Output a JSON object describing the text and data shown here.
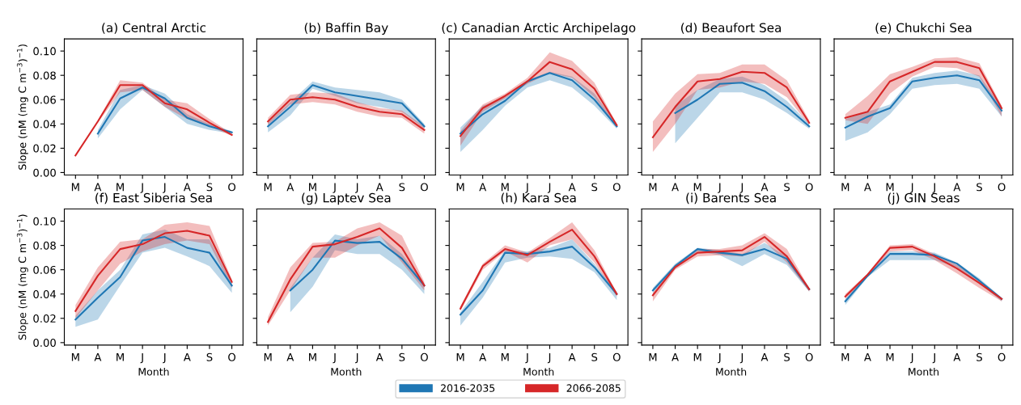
{
  "chart_data": [
    {
      "type": "line",
      "title": "(a) Central Arctic",
      "categories": [
        "M",
        "A",
        "M",
        "J",
        "J",
        "A",
        "S",
        "O"
      ],
      "legend": "bottom",
      "ylabel": "Slope (nM (mg C m$^{−3}$)$^{−1}$)",
      "ylim": [
        -0.002,
        0.11
      ],
      "yticks": [
        {
          "value": 0,
          "label": "0.00"
        },
        {
          "value": 0.02,
          "label": "0.02"
        },
        {
          "value": 0.04,
          "label": "0.04"
        },
        {
          "value": 0.06,
          "label": "0.06"
        },
        {
          "value": 0.08,
          "label": "0.08"
        },
        {
          "value": 0.1,
          "label": "0.10"
        }
      ],
      "series": [
        {
          "name": "2016-2035",
          "color": "#1f77b4",
          "values": [
            null,
            0.032,
            0.061,
            0.07,
            0.061,
            0.045,
            0.038,
            0.033
          ],
          "lower": [
            null,
            0.028,
            0.052,
            0.068,
            0.054,
            0.04,
            0.035,
            0.032
          ],
          "upper": [
            null,
            0.035,
            0.068,
            0.072,
            0.065,
            0.048,
            0.04,
            0.034
          ]
        },
        {
          "name": "2066-2085",
          "color": "#d62728",
          "values": [
            0.014,
            0.042,
            0.072,
            0.072,
            0.057,
            0.052,
            0.041,
            0.031
          ],
          "lower": [
            null,
            0.041,
            0.066,
            0.068,
            0.054,
            0.044,
            0.038,
            0.03
          ],
          "upper": [
            null,
            0.043,
            0.076,
            0.074,
            0.06,
            0.057,
            0.044,
            0.032
          ]
        }
      ]
    },
    {
      "type": "line",
      "title": "(b) Baffin Bay",
      "categories": [
        "M",
        "A",
        "M",
        "J",
        "J",
        "A",
        "S",
        "O"
      ],
      "tick_labels": "x",
      "ylim": [
        -0.002,
        0.11
      ],
      "yticks": [
        0,
        0.02,
        0.04,
        0.06,
        0.08,
        0.1
      ],
      "series": [
        {
          "color": "#1f77b4",
          "values": [
            0.038,
            0.054,
            0.072,
            0.066,
            0.063,
            0.06,
            0.057,
            0.038
          ],
          "lower": [
            0.033,
            0.047,
            0.069,
            0.063,
            0.057,
            0.054,
            0.05,
            0.036
          ],
          "upper": [
            0.041,
            0.058,
            0.075,
            0.07,
            0.068,
            0.066,
            0.06,
            0.04
          ]
        },
        {
          "color": "#d62728",
          "values": [
            0.042,
            0.06,
            0.062,
            0.06,
            0.054,
            0.05,
            0.048,
            0.035
          ],
          "lower": [
            0.039,
            0.056,
            0.058,
            0.056,
            0.05,
            0.046,
            0.045,
            0.032
          ],
          "upper": [
            0.045,
            0.064,
            0.066,
            0.065,
            0.058,
            0.053,
            0.051,
            0.038
          ]
        }
      ]
    },
    {
      "type": "line",
      "title": "(c) Canadian Arctic Archipelago",
      "categories": [
        "M",
        "A",
        "M",
        "J",
        "J",
        "A",
        "S",
        "O"
      ],
      "tick_labels": "x",
      "ylim": [
        -0.002,
        0.11
      ],
      "yticks": [
        0,
        0.02,
        0.04,
        0.06,
        0.08,
        0.1
      ],
      "series": [
        {
          "color": "#1f77b4",
          "values": [
            0.032,
            0.048,
            0.059,
            0.075,
            0.082,
            0.076,
            0.06,
            0.038
          ],
          "lower": [
            0.017,
            0.035,
            0.055,
            0.07,
            0.076,
            0.07,
            0.055,
            0.036
          ],
          "upper": [
            0.037,
            0.055,
            0.062,
            0.076,
            0.083,
            0.079,
            0.065,
            0.04
          ]
        },
        {
          "color": "#d62728",
          "values": [
            0.03,
            0.053,
            0.063,
            0.075,
            0.091,
            0.085,
            0.069,
            0.039
          ],
          "lower": [
            0.022,
            0.05,
            0.061,
            0.073,
            0.082,
            0.078,
            0.062,
            0.037
          ],
          "upper": [
            0.034,
            0.056,
            0.065,
            0.078,
            0.099,
            0.092,
            0.074,
            0.04
          ]
        }
      ]
    },
    {
      "type": "line",
      "title": "(d) Beaufort Sea",
      "categories": [
        "M",
        "A",
        "M",
        "J",
        "J",
        "A",
        "S",
        "O"
      ],
      "tick_labels": "x",
      "ylim": [
        -0.002,
        0.11
      ],
      "yticks": [
        0,
        0.02,
        0.04,
        0.06,
        0.08,
        0.1
      ],
      "series": [
        {
          "color": "#1f77b4",
          "values": [
            null,
            0.049,
            0.06,
            0.073,
            0.074,
            0.067,
            0.054,
            0.038
          ],
          "lower": [
            null,
            0.024,
            0.045,
            0.066,
            0.066,
            0.06,
            0.049,
            0.036
          ],
          "upper": [
            null,
            0.055,
            0.068,
            0.077,
            0.079,
            0.072,
            0.059,
            0.04
          ]
        },
        {
          "color": "#d62728",
          "values": [
            0.029,
            0.054,
            0.075,
            0.077,
            0.083,
            0.082,
            0.07,
            0.041
          ],
          "lower": [
            0.017,
            0.04,
            0.068,
            0.07,
            0.075,
            0.073,
            0.062,
            0.039
          ],
          "upper": [
            0.042,
            0.065,
            0.081,
            0.082,
            0.089,
            0.089,
            0.076,
            0.043
          ]
        }
      ]
    },
    {
      "type": "line",
      "title": "(e) Chukchi Sea",
      "categories": [
        "M",
        "A",
        "M",
        "J",
        "J",
        "A",
        "S",
        "O"
      ],
      "tick_labels": "x",
      "ylim": [
        -0.002,
        0.11
      ],
      "yticks": [
        0,
        0.02,
        0.04,
        0.06,
        0.08,
        0.1
      ],
      "series": [
        {
          "color": "#1f77b4",
          "values": [
            0.037,
            0.046,
            0.053,
            0.075,
            0.078,
            0.08,
            0.076,
            0.051
          ],
          "lower": [
            0.026,
            0.033,
            0.048,
            0.069,
            0.072,
            0.073,
            0.069,
            0.046
          ],
          "upper": [
            0.044,
            0.05,
            0.056,
            0.078,
            0.082,
            0.084,
            0.08,
            0.054
          ]
        },
        {
          "color": "#d62728",
          "values": [
            0.045,
            0.05,
            0.075,
            0.083,
            0.091,
            0.091,
            0.086,
            0.053
          ],
          "lower": [
            0.043,
            0.04,
            0.065,
            0.079,
            0.087,
            0.086,
            0.079,
            0.046
          ],
          "upper": [
            0.048,
            0.063,
            0.081,
            0.087,
            0.094,
            0.095,
            0.09,
            0.055
          ]
        }
      ]
    },
    {
      "type": "line",
      "title": "(f) East Siberia Sea",
      "categories": [
        "M",
        "A",
        "M",
        "J",
        "J",
        "A",
        "S",
        "O"
      ],
      "xlabel": "Month",
      "ylabel": "Slope (nM (mg C m$^{−3}$)$^{−1}$)",
      "ylim": [
        -0.002,
        0.11
      ],
      "yticks": [
        {
          "value": 0,
          "label": "0.00"
        },
        {
          "value": 0.02,
          "label": "0.02"
        },
        {
          "value": 0.04,
          "label": "0.04"
        },
        {
          "value": 0.06,
          "label": "0.06"
        },
        {
          "value": 0.08,
          "label": "0.08"
        },
        {
          "value": 0.1,
          "label": "0.10"
        }
      ],
      "series": [
        {
          "color": "#1f77b4",
          "values": [
            0.019,
            0.037,
            0.054,
            0.084,
            0.087,
            0.078,
            0.074,
            0.047
          ],
          "lower": [
            0.013,
            0.019,
            0.047,
            0.074,
            0.078,
            0.071,
            0.063,
            0.041
          ],
          "upper": [
            0.022,
            0.043,
            0.06,
            0.089,
            0.093,
            0.085,
            0.085,
            0.049
          ]
        },
        {
          "color": "#d62728",
          "values": [
            0.026,
            0.055,
            0.077,
            0.081,
            0.09,
            0.092,
            0.088,
            0.05
          ],
          "lower": [
            0.02,
            0.043,
            0.065,
            0.075,
            0.081,
            0.084,
            0.081,
            0.045
          ],
          "upper": [
            0.031,
            0.062,
            0.083,
            0.085,
            0.097,
            0.099,
            0.096,
            0.052
          ]
        }
      ]
    },
    {
      "type": "line",
      "title": "(g) Laptev Sea",
      "categories": [
        "M",
        "A",
        "M",
        "J",
        "J",
        "A",
        "S",
        "O"
      ],
      "xlabel": "Month",
      "tick_labels": "x",
      "ylim": [
        -0.002,
        0.11
      ],
      "yticks": [
        0,
        0.02,
        0.04,
        0.06,
        0.08,
        0.1
      ],
      "series": [
        {
          "color": "#1f77b4",
          "values": [
            null,
            0.043,
            0.06,
            0.084,
            0.082,
            0.083,
            0.069,
            0.047
          ],
          "lower": [
            null,
            0.025,
            0.046,
            0.076,
            0.073,
            0.073,
            0.06,
            0.04
          ],
          "upper": [
            null,
            0.045,
            0.07,
            0.089,
            0.085,
            0.088,
            0.073,
            0.049
          ]
        },
        {
          "color": "#d62728",
          "values": [
            0.017,
            0.052,
            0.079,
            0.081,
            0.087,
            0.094,
            0.078,
            0.047
          ],
          "lower": [
            0.014,
            0.043,
            0.07,
            0.07,
            0.08,
            0.088,
            0.066,
            0.043
          ],
          "upper": [
            0.021,
            0.062,
            0.082,
            0.083,
            0.094,
            0.099,
            0.088,
            0.05
          ]
        }
      ]
    },
    {
      "type": "line",
      "title": "(h) Kara Sea",
      "categories": [
        "M",
        "A",
        "M",
        "J",
        "J",
        "A",
        "S",
        "O"
      ],
      "xlabel": "Month",
      "tick_labels": "x",
      "ylim": [
        -0.002,
        0.11
      ],
      "yticks": [
        0,
        0.02,
        0.04,
        0.06,
        0.08,
        0.1
      ],
      "series": [
        {
          "color": "#1f77b4",
          "values": [
            0.023,
            0.043,
            0.074,
            0.073,
            0.075,
            0.079,
            0.062,
            0.04
          ],
          "lower": [
            0.014,
            0.037,
            0.066,
            0.07,
            0.071,
            0.069,
            0.058,
            0.035
          ],
          "upper": [
            0.025,
            0.05,
            0.076,
            0.075,
            0.078,
            0.085,
            0.065,
            0.042
          ]
        },
        {
          "color": "#d62728",
          "values": [
            0.028,
            0.063,
            0.077,
            0.072,
            0.083,
            0.093,
            0.071,
            0.04
          ],
          "lower": [
            0.026,
            0.06,
            0.075,
            0.066,
            0.08,
            0.085,
            0.066,
            0.038
          ],
          "upper": [
            0.03,
            0.065,
            0.08,
            0.074,
            0.086,
            0.099,
            0.076,
            0.041
          ]
        }
      ]
    },
    {
      "type": "line",
      "title": "(i) Barents Sea",
      "categories": [
        "M",
        "A",
        "M",
        "J",
        "J",
        "A",
        "S",
        "O"
      ],
      "xlabel": "Month",
      "tick_labels": "x",
      "ylim": [
        -0.002,
        0.11
      ],
      "yticks": [
        0,
        0.02,
        0.04,
        0.06,
        0.08,
        0.1
      ],
      "series": [
        {
          "color": "#1f77b4",
          "values": [
            0.043,
            0.063,
            0.077,
            0.074,
            0.072,
            0.077,
            0.069,
            0.044
          ],
          "lower": [
            0.041,
            0.061,
            0.075,
            0.072,
            0.063,
            0.073,
            0.064,
            0.042
          ],
          "upper": [
            0.045,
            0.065,
            0.078,
            0.076,
            0.073,
            0.082,
            0.071,
            0.045
          ]
        },
        {
          "color": "#d62728",
          "values": [
            0.039,
            0.062,
            0.074,
            0.075,
            0.076,
            0.087,
            0.071,
            0.044
          ],
          "lower": [
            0.034,
            0.06,
            0.071,
            0.072,
            0.071,
            0.083,
            0.066,
            0.042
          ],
          "upper": [
            0.041,
            0.064,
            0.077,
            0.077,
            0.08,
            0.09,
            0.077,
            0.045
          ]
        }
      ]
    },
    {
      "type": "line",
      "title": "(j) GIN Seas",
      "categories": [
        "M",
        "A",
        "M",
        "J",
        "J",
        "A",
        "S",
        "O"
      ],
      "xlabel": "Month",
      "tick_labels": "x",
      "ylim": [
        -0.002,
        0.11
      ],
      "yticks": [
        0,
        0.02,
        0.04,
        0.06,
        0.08,
        0.1
      ],
      "series": [
        {
          "color": "#1f77b4",
          "values": [
            0.034,
            0.055,
            0.073,
            0.073,
            0.072,
            0.065,
            0.051,
            0.036
          ],
          "lower": [
            0.031,
            0.054,
            0.068,
            0.068,
            0.068,
            0.062,
            0.049,
            0.034
          ],
          "upper": [
            0.036,
            0.057,
            0.075,
            0.075,
            0.074,
            0.066,
            0.053,
            0.037
          ]
        },
        {
          "color": "#d62728",
          "values": [
            0.038,
            0.056,
            0.078,
            0.079,
            0.071,
            0.061,
            0.049,
            0.036
          ],
          "lower": [
            0.036,
            0.054,
            0.075,
            0.076,
            0.068,
            0.057,
            0.045,
            0.034
          ],
          "upper": [
            0.04,
            0.057,
            0.08,
            0.081,
            0.073,
            0.064,
            0.051,
            0.037
          ]
        }
      ]
    }
  ]
}
